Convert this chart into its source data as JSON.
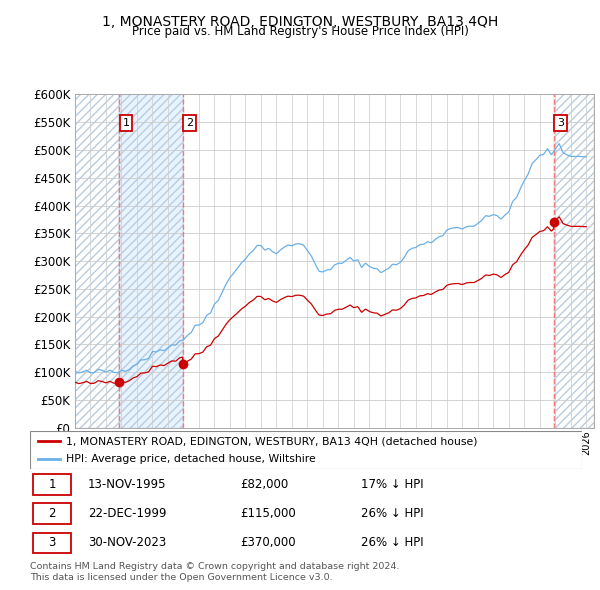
{
  "title": "1, MONASTERY ROAD, EDINGTON, WESTBURY, BA13 4QH",
  "subtitle": "Price paid vs. HM Land Registry's House Price Index (HPI)",
  "ylim": [
    0,
    600000
  ],
  "yticks": [
    0,
    50000,
    100000,
    150000,
    200000,
    250000,
    300000,
    350000,
    400000,
    450000,
    500000,
    550000,
    600000
  ],
  "xlim_start": 1993.0,
  "xlim_end": 2026.5,
  "legend_line1": "1, MONASTERY ROAD, EDINGTON, WESTBURY, BA13 4QH (detached house)",
  "legend_line2": "HPI: Average price, detached house, Wiltshire",
  "transaction_dates": [
    1995.87,
    1999.98,
    2023.92
  ],
  "transaction_prices": [
    82000,
    115000,
    370000
  ],
  "transaction_labels": [
    "1",
    "2",
    "3"
  ],
  "footnote1": "Contains HM Land Registry data © Crown copyright and database right 2024.",
  "footnote2": "This data is licensed under the Open Government Licence v3.0.",
  "table_rows": [
    [
      "1",
      "13-NOV-1995",
      "£82,000",
      "17% ↓ HPI"
    ],
    [
      "2",
      "22-DEC-1999",
      "£115,000",
      "26% ↓ HPI"
    ],
    [
      "3",
      "30-NOV-2023",
      "£370,000",
      "26% ↓ HPI"
    ]
  ],
  "hpi_color": "#6ab0e8",
  "price_color": "#cc0000",
  "vline_color": "#ff6666",
  "hpi_pts_x": [
    1993,
    1993.25,
    1993.5,
    1993.75,
    1994,
    1994.25,
    1994.5,
    1994.75,
    1995,
    1995.25,
    1995.5,
    1995.75,
    1996,
    1996.25,
    1996.5,
    1996.75,
    1997,
    1997.25,
    1997.5,
    1997.75,
    1998,
    1998.25,
    1998.5,
    1998.75,
    1999,
    1999.25,
    1999.5,
    1999.75,
    2000,
    2000.25,
    2000.5,
    2000.75,
    2001,
    2001.25,
    2001.5,
    2001.75,
    2002,
    2002.25,
    2002.5,
    2002.75,
    2003,
    2003.25,
    2003.5,
    2003.75,
    2004,
    2004.25,
    2004.5,
    2004.75,
    2005,
    2005.25,
    2005.5,
    2005.75,
    2006,
    2006.25,
    2006.5,
    2006.75,
    2007,
    2007.25,
    2007.5,
    2007.75,
    2008,
    2008.25,
    2008.5,
    2008.75,
    2009,
    2009.25,
    2009.5,
    2009.75,
    2010,
    2010.25,
    2010.5,
    2010.75,
    2011,
    2011.25,
    2011.5,
    2011.75,
    2012,
    2012.25,
    2012.5,
    2012.75,
    2013,
    2013.25,
    2013.5,
    2013.75,
    2014,
    2014.25,
    2014.5,
    2014.75,
    2015,
    2015.25,
    2015.5,
    2015.75,
    2016,
    2016.25,
    2016.5,
    2016.75,
    2017,
    2017.25,
    2017.5,
    2017.75,
    2018,
    2018.25,
    2018.5,
    2018.75,
    2019,
    2019.25,
    2019.5,
    2019.75,
    2020,
    2020.25,
    2020.5,
    2020.75,
    2021,
    2021.25,
    2021.5,
    2021.75,
    2022,
    2022.25,
    2022.5,
    2022.75,
    2023,
    2023.25,
    2023.5,
    2023.75,
    2024,
    2024.25,
    2024.5,
    2024.75,
    2025,
    2025.5,
    2026
  ],
  "hpi_pts_y": [
    100000,
    99000,
    98500,
    99000,
    99500,
    100000,
    100500,
    101000,
    101500,
    102000,
    101000,
    100500,
    103000,
    107000,
    110000,
    113000,
    117000,
    121000,
    125000,
    129000,
    133000,
    137000,
    140000,
    143000,
    146000,
    149000,
    152000,
    155000,
    160000,
    167000,
    173000,
    179000,
    185000,
    192000,
    200000,
    210000,
    222000,
    235000,
    248000,
    258000,
    268000,
    278000,
    288000,
    298000,
    308000,
    315000,
    320000,
    325000,
    327000,
    325000,
    322000,
    318000,
    315000,
    318000,
    322000,
    326000,
    330000,
    332000,
    330000,
    326000,
    320000,
    310000,
    298000,
    285000,
    278000,
    280000,
    285000,
    290000,
    295000,
    298000,
    300000,
    302000,
    300000,
    298000,
    296000,
    294000,
    290000,
    288000,
    286000,
    285000,
    284000,
    286000,
    290000,
    295000,
    300000,
    308000,
    316000,
    322000,
    326000,
    328000,
    330000,
    332000,
    335000,
    340000,
    345000,
    350000,
    355000,
    358000,
    360000,
    361000,
    362000,
    363000,
    364000,
    365000,
    368000,
    372000,
    376000,
    380000,
    383000,
    382000,
    381000,
    383000,
    388000,
    400000,
    415000,
    430000,
    445000,
    460000,
    472000,
    480000,
    488000,
    495000,
    498000,
    495000,
    500000,
    505000,
    498000,
    493000,
    488000,
    490000,
    492000
  ],
  "background_color": "#ffffff"
}
